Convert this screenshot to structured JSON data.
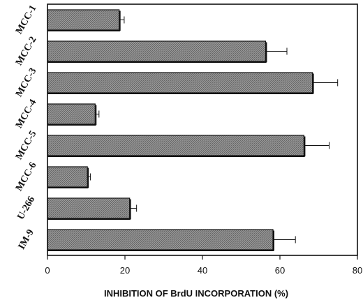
{
  "chart_data": {
    "type": "bar",
    "orientation": "horizontal",
    "title": "",
    "xlabel": "INHIBITION OF BrdU INCORPORATION (%)",
    "ylabel": "",
    "xlim": [
      0,
      80
    ],
    "x_ticks": [
      0,
      20,
      40,
      60,
      80
    ],
    "grid": false,
    "legend": "none",
    "categories": [
      "MCC-1",
      "MCC-2",
      "MCC-3",
      "MCC-4",
      "MCC-5",
      "MCC-6",
      "U-266",
      "IM-9"
    ],
    "values": [
      18.5,
      56.3,
      68.4,
      12.3,
      66.2,
      10.3,
      21.2,
      58.2
    ],
    "errors": [
      1.3,
      5.5,
      6.5,
      1.0,
      6.5,
      0.8,
      1.8,
      5.8
    ],
    "bar_fill": "#9a9a9a",
    "bar_edge": "#111111"
  }
}
